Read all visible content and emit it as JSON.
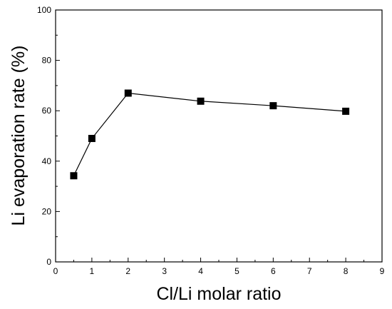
{
  "chart_data": {
    "type": "line",
    "title": "",
    "xlabel": "Cl/Li molar ratio",
    "ylabel": "Li evaporation rate (%)",
    "xlim": [
      0,
      9
    ],
    "ylim": [
      0,
      100
    ],
    "xticks": [
      "0",
      "1",
      "2",
      "3",
      "4",
      "5",
      "6",
      "7",
      "8",
      "9"
    ],
    "yticks": [
      "0",
      "20",
      "40",
      "60",
      "80",
      "100"
    ],
    "grid": false,
    "legend": "none",
    "marker": "square",
    "series": [
      {
        "x": [
          0.5,
          1,
          2,
          4,
          6,
          8
        ],
        "y": [
          34.2,
          49.0,
          67.0,
          63.8,
          62.0,
          59.8
        ]
      }
    ],
    "colors": {
      "line": "#000000",
      "marker": "#000000"
    }
  }
}
